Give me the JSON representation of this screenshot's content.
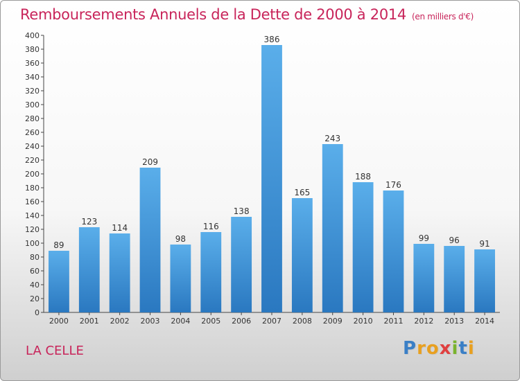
{
  "header": {
    "title": "Remboursements Annuels de la Dette de 2000 à 2014",
    "subtitle": "(en milliers d'€)"
  },
  "footer": {
    "town": "LA CELLE",
    "logo_letters": [
      "P",
      "r",
      "o",
      "x",
      "i",
      "t",
      "i"
    ]
  },
  "colors": {
    "accent": "#c8245a",
    "bar_top": "#5aaeea",
    "bar_bottom": "#2a78c0"
  },
  "chart_data": {
    "type": "bar",
    "title": "Remboursements Annuels de la Dette de 2000 à 2014",
    "subtitle": "(en milliers d'€)",
    "xlabel": "",
    "ylabel": "",
    "ylim": [
      0,
      400
    ],
    "ytick_step": 20,
    "grid": false,
    "categories": [
      "2000",
      "2001",
      "2002",
      "2003",
      "2004",
      "2005",
      "2006",
      "2007",
      "2008",
      "2009",
      "2010",
      "2011",
      "2012",
      "2013",
      "2014"
    ],
    "values": [
      89,
      123,
      114,
      209,
      98,
      116,
      138,
      386,
      165,
      243,
      188,
      176,
      99,
      96,
      91
    ]
  }
}
